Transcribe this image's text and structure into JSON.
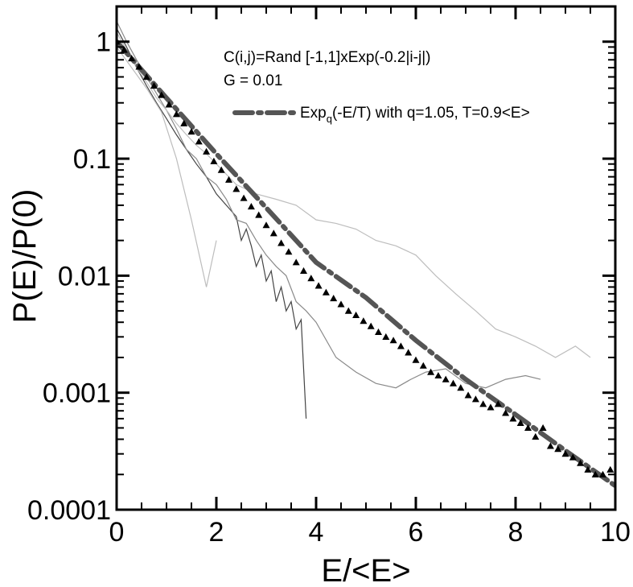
{
  "chart_data": {
    "type": "line",
    "title": "",
    "xlabel": "E/<E>",
    "ylabel": "P(E)/P(0)",
    "xlim": [
      0,
      10
    ],
    "ylim": [
      0.0001,
      2
    ],
    "y_scale": "log",
    "grid": false,
    "x_ticks": [
      0,
      2,
      4,
      6,
      8,
      10
    ],
    "x_tick_labels": [
      "0",
      "2",
      "4",
      "6",
      "8",
      "10"
    ],
    "y_ticks": [
      1,
      0.1,
      0.01,
      0.001,
      0.0001
    ],
    "y_tick_labels": [
      "1",
      "0.1",
      "0.01",
      "0.001",
      "0.0001"
    ],
    "annotations": {
      "line1": "C(i,j)=Rand [-1,1]xExp(-0.2|i-j|)",
      "line2": "G = 0.01"
    },
    "legend": {
      "placement": "top-right",
      "text_prefix": "Exp",
      "text_sub": "q",
      "text_suffix": "(-E/T) with q=1.05, T=0.9<E>"
    },
    "colors": {
      "fit": "#555555",
      "markers": "#000000",
      "noisy_dark": "#444444",
      "noisy_mid": "#8a8a8a",
      "noisy_light": "#bdbdbd"
    },
    "fit": {
      "name": "Exp_q(-E/T) with q=1.05, T=0.9<E>",
      "style": "dash-dot",
      "x": [
        0,
        1,
        2,
        3,
        4,
        5,
        6,
        7,
        8,
        9,
        10
      ],
      "y": [
        1,
        0.33,
        0.11,
        0.038,
        0.013,
        0.0065,
        0.0028,
        0.0013,
        0.00065,
        0.00032,
        0.00016
      ]
    },
    "markers": {
      "marker": "triangle",
      "x": [
        0.0,
        0.15,
        0.3,
        0.45,
        0.6,
        0.75,
        0.9,
        1.05,
        1.2,
        1.35,
        1.5,
        1.65,
        1.8,
        1.95,
        2.1,
        2.25,
        2.4,
        2.55,
        2.7,
        2.85,
        3.0,
        3.15,
        3.3,
        3.45,
        3.6,
        3.75,
        3.9,
        4.05,
        4.2,
        4.35,
        4.5,
        4.65,
        4.8,
        4.95,
        5.1,
        5.25,
        5.4,
        5.55,
        5.7,
        5.85,
        6.0,
        6.15,
        6.3,
        6.45,
        6.6,
        6.75,
        6.9,
        7.05,
        7.2,
        7.35,
        7.5,
        7.65,
        7.8,
        7.95,
        8.1,
        8.25,
        8.4,
        8.55,
        8.7,
        8.85,
        9.0,
        9.15,
        9.3,
        9.45,
        9.6,
        9.75,
        9.9
      ],
      "y": [
        1,
        0.85,
        0.72,
        0.61,
        0.5,
        0.42,
        0.35,
        0.29,
        0.24,
        0.2,
        0.17,
        0.14,
        0.115,
        0.095,
        0.08,
        0.066,
        0.055,
        0.046,
        0.039,
        0.033,
        0.027,
        0.023,
        0.019,
        0.016,
        0.013,
        0.011,
        0.0095,
        0.0082,
        0.0072,
        0.0064,
        0.0057,
        0.005,
        0.0046,
        0.0041,
        0.0037,
        0.0033,
        0.003,
        0.0028,
        0.0025,
        0.0022,
        0.0019,
        0.0017,
        0.0015,
        0.0014,
        0.0013,
        0.0012,
        0.0011,
        0.00095,
        0.00088,
        0.0008,
        0.00075,
        0.0008,
        0.00067,
        0.0006,
        0.00055,
        0.0005,
        0.00042,
        0.0005,
        0.00035,
        0.00033,
        0.0003,
        0.00028,
        0.00025,
        0.00022,
        0.0002,
        0.0002,
        0.00022
      ]
    },
    "noisy_series": [
      {
        "shade": "dark",
        "x": [
          0,
          0.2,
          0.4,
          0.6,
          0.8,
          1.0,
          1.2,
          1.4,
          1.6,
          1.8,
          2.0,
          2.2,
          2.4,
          2.5,
          2.6,
          2.7,
          2.8,
          2.9,
          3.0,
          3.1,
          3.2,
          3.3,
          3.4,
          3.5,
          3.6,
          3.7,
          3.8
        ],
        "y": [
          1.3,
          0.9,
          0.6,
          0.42,
          0.3,
          0.22,
          0.16,
          0.12,
          0.09,
          0.07,
          0.05,
          0.04,
          0.032,
          0.02,
          0.025,
          0.018,
          0.012,
          0.015,
          0.009,
          0.011,
          0.006,
          0.008,
          0.005,
          0.006,
          0.0035,
          0.0042,
          0.0006
        ]
      },
      {
        "shade": "mid",
        "x": [
          0,
          0.2,
          0.4,
          0.6,
          0.8,
          1.0,
          1.2,
          1.4,
          1.6,
          1.8,
          2.0,
          2.2,
          2.4,
          2.6,
          2.8,
          3.0,
          3.2,
          3.4,
          3.6,
          3.8,
          4.0,
          4.4,
          4.8,
          5.2,
          5.6,
          5.9,
          6.2,
          6.6,
          7.0,
          7.4,
          7.8,
          8.2,
          8.5
        ],
        "y": [
          1.5,
          1.0,
          0.7,
          0.5,
          0.36,
          0.26,
          0.18,
          0.12,
          0.1,
          0.07,
          0.06,
          0.045,
          0.03,
          0.028,
          0.02,
          0.015,
          0.012,
          0.01,
          0.006,
          0.005,
          0.004,
          0.002,
          0.0015,
          0.0012,
          0.0011,
          0.0013,
          0.0015,
          0.0016,
          0.0012,
          0.0011,
          0.0013,
          0.0014,
          0.0013
        ]
      },
      {
        "shade": "light",
        "x": [
          0,
          0.2,
          0.4,
          0.6,
          0.8,
          1.0,
          1.2,
          1.4,
          1.6,
          1.8,
          2.0,
          2.4,
          2.8,
          3.2,
          3.6,
          4.0,
          4.4,
          4.8,
          5.2,
          5.6,
          6.0,
          6.4,
          6.8,
          7.2,
          7.6,
          8.0,
          8.4,
          8.8,
          9.2,
          9.5
        ],
        "y": [
          1.2,
          0.85,
          0.6,
          0.45,
          0.33,
          0.26,
          0.2,
          0.16,
          0.13,
          0.11,
          0.09,
          0.06,
          0.05,
          0.045,
          0.04,
          0.03,
          0.028,
          0.025,
          0.02,
          0.018,
          0.015,
          0.01,
          0.007,
          0.005,
          0.0035,
          0.003,
          0.0025,
          0.002,
          0.0025,
          0.002
        ]
      },
      {
        "shade": "light",
        "x": [
          0,
          0.3,
          0.6,
          0.9,
          1.2,
          1.5,
          1.8,
          2.0
        ],
        "y": [
          0.9,
          0.6,
          0.4,
          0.25,
          0.1,
          0.03,
          0.008,
          0.02
        ]
      }
    ]
  }
}
